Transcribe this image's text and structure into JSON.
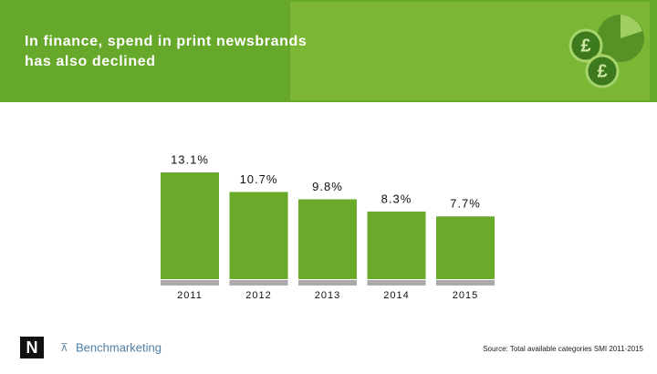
{
  "chart_data": {
    "type": "bar",
    "title": [
      "In finance, spend in print newsbrands",
      "has also declined"
    ],
    "categories": [
      "2011",
      "2012",
      "2013",
      "2014",
      "2015"
    ],
    "values": [
      13.1,
      10.7,
      9.8,
      8.3,
      7.7
    ],
    "value_labels": [
      "13.1%",
      "10.7%",
      "9.8%",
      "8.3%",
      "7.7%"
    ],
    "color": "#6aaa2a",
    "source": "Source: Total available categories SMI 2011-2015"
  },
  "logos": {
    "newsworks": "N",
    "benchmarketing": "Benchmarketing"
  }
}
